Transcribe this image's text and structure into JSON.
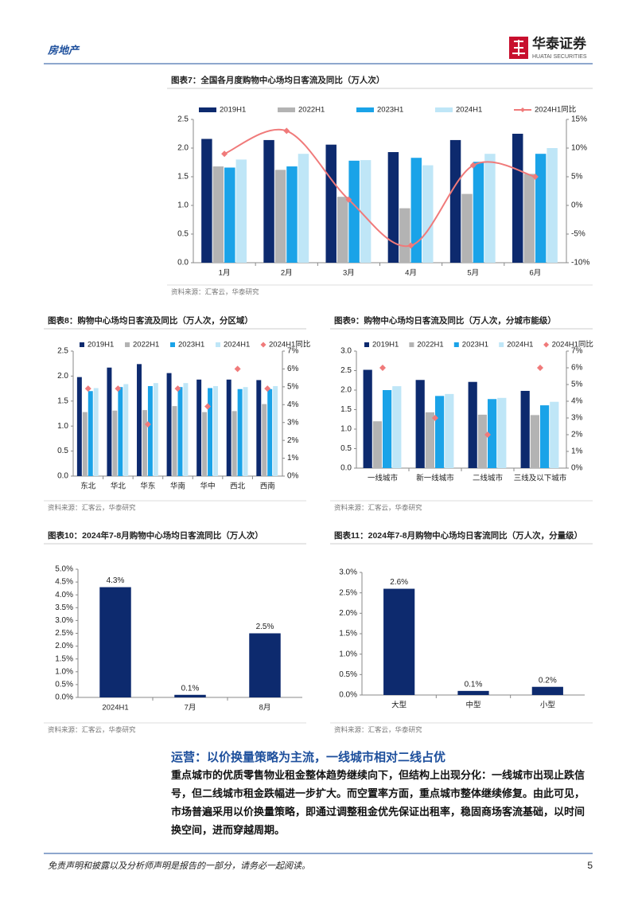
{
  "header": {
    "section": "房地产",
    "logo": "华泰证券",
    "logo_en": "HUATAI SECURITIES"
  },
  "chart_data": [
    {
      "type": "bar",
      "title": "图表7：全国各月度购物中心场均日客流及同比（万人次）",
      "source": "资料来源：汇客云，华泰研究",
      "categories": [
        "1月",
        "2月",
        "3月",
        "4月",
        "5月",
        "6月"
      ],
      "series": [
        {
          "name": "2019H1",
          "color": "#0d2a6e",
          "values": [
            2.16,
            2.14,
            2.06,
            1.93,
            2.14,
            2.25
          ]
        },
        {
          "name": "2022H1",
          "color": "#b3b3b3",
          "values": [
            1.68,
            1.62,
            1.15,
            0.95,
            1.2,
            1.55
          ]
        },
        {
          "name": "2023H1",
          "color": "#1aa3e8",
          "values": [
            1.66,
            1.68,
            1.78,
            1.83,
            1.76,
            1.9
          ]
        },
        {
          "name": "2024H1",
          "color": "#bfe6f7",
          "values": [
            1.8,
            1.9,
            1.79,
            1.7,
            1.9,
            2.0
          ]
        },
        {
          "name": "2024H1同比",
          "color": "#f07a7a",
          "type": "line",
          "axis": "y2",
          "values": [
            9,
            13,
            1,
            -7,
            7,
            5
          ]
        }
      ],
      "ylim": [
        0,
        2.5
      ],
      "yticks": [
        {
          "value": 0,
          "label": "0.0"
        },
        0.5,
        {
          "value": 1,
          "label": "1.0"
        },
        1.5,
        {
          "value": 2,
          "label": "2.0"
        },
        2.5
      ],
      "y2lim": [
        -10,
        15
      ],
      "y2ticks": [
        {
          "value": -10,
          "label": "-10%"
        },
        {
          "value": -5,
          "label": "-5%"
        },
        {
          "value": 0,
          "label": "0%"
        },
        {
          "value": 5,
          "label": "5%"
        },
        {
          "value": 10,
          "label": "10%"
        },
        {
          "value": 15,
          "label": "15%"
        }
      ],
      "grid": false
    },
    {
      "type": "bar",
      "title": "图表8：购物中心场均日客流及同比（万人次，分区域）",
      "source": "资料来源：汇客云，华泰研究",
      "categories": [
        "东北",
        "华北",
        "华东",
        "华南",
        "华中",
        "西北",
        "西南"
      ],
      "series": [
        {
          "name": "2019H1",
          "color": "#0d2a6e",
          "values": [
            1.98,
            2.17,
            2.24,
            2.06,
            1.93,
            1.93,
            1.92
          ]
        },
        {
          "name": "2022H1",
          "color": "#b3b3b3",
          "values": [
            1.28,
            1.31,
            1.32,
            1.4,
            1.28,
            1.3,
            1.44
          ]
        },
        {
          "name": "2023H1",
          "color": "#1aa3e8",
          "values": [
            1.7,
            1.78,
            1.8,
            1.78,
            1.76,
            1.74,
            1.74
          ]
        },
        {
          "name": "2024H1",
          "color": "#bfe6f7",
          "values": [
            1.76,
            1.84,
            1.86,
            1.86,
            1.8,
            1.78,
            1.8
          ]
        },
        {
          "name": "2024H1同比",
          "color": "#f07a7a",
          "type": "scatter",
          "axis": "y2",
          "values": [
            4.9,
            4.9,
            2.9,
            4.9,
            3.9,
            6.0,
            4.9
          ]
        }
      ],
      "ylim": [
        0,
        2.5
      ],
      "yticks": [
        {
          "value": 0,
          "label": "0.0"
        },
        0.5,
        {
          "value": 1,
          "label": "1.0"
        },
        1.5,
        {
          "value": 2,
          "label": "2.0"
        },
        2.5
      ],
      "y2lim": [
        0,
        7
      ],
      "y2ticks": [
        {
          "value": 0,
          "label": "0%"
        },
        {
          "value": 1,
          "label": "1%"
        },
        {
          "value": 2,
          "label": "2%"
        },
        {
          "value": 3,
          "label": "3%"
        },
        {
          "value": 4,
          "label": "4%"
        },
        {
          "value": 5,
          "label": "5%"
        },
        {
          "value": 6,
          "label": "6%"
        },
        {
          "value": 7,
          "label": "7%"
        }
      ],
      "grid": false
    },
    {
      "type": "bar",
      "title": "图表9：购物中心场均日客流及同比（万人次，分城市能级）",
      "source": "资料来源：汇客云，华泰研究",
      "categories": [
        "一线城市",
        "新一线城市",
        "二线城市",
        "三线及以下城市"
      ],
      "series": [
        {
          "name": "2019H1",
          "color": "#0d2a6e",
          "values": [
            2.52,
            2.26,
            2.21,
            1.98
          ]
        },
        {
          "name": "2022H1",
          "color": "#b3b3b3",
          "values": [
            1.2,
            1.43,
            1.37,
            1.36
          ]
        },
        {
          "name": "2023H1",
          "color": "#1aa3e8",
          "values": [
            2.0,
            1.85,
            1.77,
            1.61
          ]
        },
        {
          "name": "2024H1",
          "color": "#bfe6f7",
          "values": [
            2.1,
            1.9,
            1.8,
            1.7
          ]
        },
        {
          "name": "2024H1同比",
          "color": "#f07a7a",
          "type": "scatter",
          "axis": "y2",
          "values": [
            6,
            3,
            2,
            6
          ]
        }
      ],
      "ylim": [
        0,
        3
      ],
      "yticks": [
        {
          "value": 0,
          "label": "0.0"
        },
        0.5,
        {
          "value": 1,
          "label": "1.0"
        },
        1.5,
        {
          "value": 2,
          "label": "2.0"
        },
        2.5,
        {
          "value": 3,
          "label": "3.0"
        }
      ],
      "y2lim": [
        0,
        7
      ],
      "y2ticks": [
        {
          "value": 0,
          "label": "0%"
        },
        {
          "value": 1,
          "label": "1%"
        },
        {
          "value": 2,
          "label": "2%"
        },
        {
          "value": 3,
          "label": "3%"
        },
        {
          "value": 4,
          "label": "4%"
        },
        {
          "value": 5,
          "label": "5%"
        },
        {
          "value": 6,
          "label": "6%"
        },
        {
          "value": 7,
          "label": "7%"
        }
      ],
      "grid": false
    },
    {
      "type": "bar",
      "title": "图表10：2024年7-8月购物中心场均日客流同比（万人次）",
      "source": "资料来源：汇客云，华泰研究",
      "categories": [
        "2024H1",
        "7月",
        "8月"
      ],
      "values": [
        4.3,
        0.1,
        2.5
      ],
      "value_labels": [
        "4.3%",
        "0.1%",
        "2.5%"
      ],
      "color": "#0d2a6e",
      "ylim": [
        0,
        5
      ],
      "yticks": [
        {
          "value": 0,
          "label": "0.0%"
        },
        {
          "value": 0.5,
          "label": "0.5%"
        },
        {
          "value": 1,
          "label": "1.0%"
        },
        {
          "value": 1.5,
          "label": "1.5%"
        },
        {
          "value": 2,
          "label": "2.0%"
        },
        {
          "value": 2.5,
          "label": "2.5%"
        },
        {
          "value": 3,
          "label": "3.0%"
        },
        {
          "value": 3.5,
          "label": "3.5%"
        },
        {
          "value": 4,
          "label": "4.0%"
        },
        {
          "value": 4.5,
          "label": "4.5%"
        },
        {
          "value": 5,
          "label": "5.0%"
        }
      ],
      "grid": false
    },
    {
      "type": "bar",
      "title": "图表11：2024年7-8月购物中心场均日客流同比（万人次，分量级）",
      "source": "资料来源：汇客云，华泰研究",
      "categories": [
        "大型",
        "中型",
        "小型"
      ],
      "values": [
        2.6,
        0.1,
        0.2
      ],
      "value_labels": [
        "2.6%",
        "0.1%",
        "0.2%"
      ],
      "color": "#0d2a6e",
      "ylim": [
        0,
        3
      ],
      "yticks": [
        {
          "value": 0,
          "label": "0.0%"
        },
        {
          "value": 0.5,
          "label": "0.5%"
        },
        {
          "value": 1,
          "label": "1.0%"
        },
        {
          "value": 1.5,
          "label": "1.5%"
        },
        {
          "value": 2,
          "label": "2.0%"
        },
        {
          "value": 2.5,
          "label": "2.5%"
        },
        {
          "value": 3,
          "label": "3.0%"
        }
      ],
      "grid": false
    }
  ],
  "body": {
    "heading": "运营：以价换量策略为主流，一线城市相对二线占优",
    "paragraph": "重点城市的优质零售物业租金整体趋势继续向下，但结构上出现分化：一线城市出现止跌信号，但二线城市租金跌幅进一步扩大。而空置率方面，重点城市整体继续修复。由此可见，市场普遍采用以价换量策略，即通过调整租金优先保证出租率，稳固商场客流基础，以时间换空间，进而穿越周期。"
  },
  "footer": {
    "disclaimer": "免责声明和披露以及分析师声明是报告的一部分，请务必一起阅读。",
    "page": 5
  }
}
